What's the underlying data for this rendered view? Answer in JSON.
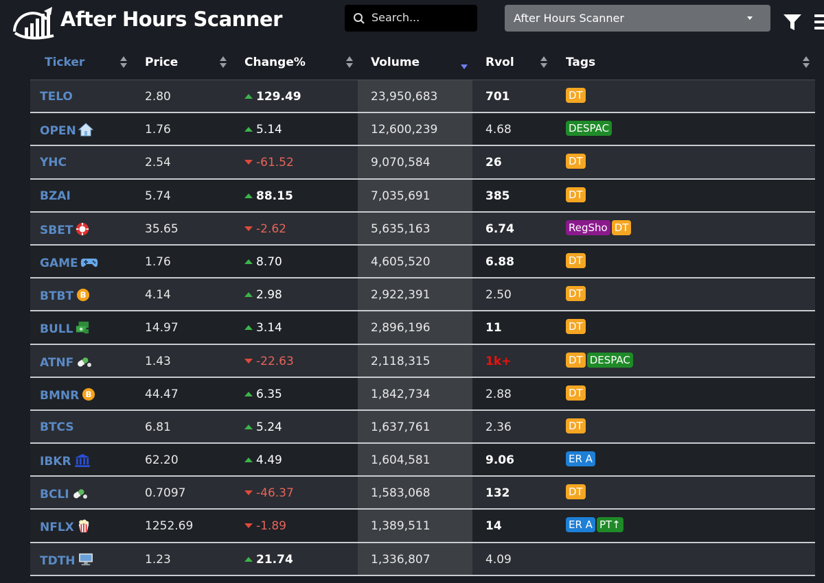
{
  "header": {
    "app_title": "After Hours Scanner",
    "search_placeholder": "Search...",
    "scanner_select_value": "After Hours Scanner"
  },
  "colors": {
    "background": "#1a1d23",
    "ticker_link": "#5a8ac6",
    "positive_arrow": "#3bb44a",
    "negative": "#e8645a",
    "tag_dt": "#f5a623",
    "tag_despac": "#1f8a28",
    "tag_regsho": "#8a1a8c",
    "tag_er": "#1e7fd6"
  },
  "table": {
    "columns": [
      "Ticker",
      "Price",
      "Change%",
      "Volume",
      "Rvol",
      "Tags"
    ],
    "sorted_by": "Volume",
    "sort_direction": "descending",
    "rows": [
      {
        "ticker": "TELO",
        "icon": "",
        "price": "2.80",
        "change": "129.49",
        "direction": "up",
        "change_bold": true,
        "volume": "23,950,683",
        "rvol": "701",
        "rvol_style": "bold",
        "tags": [
          "DT"
        ]
      },
      {
        "ticker": "OPEN",
        "icon": "house-icon",
        "price": "1.76",
        "change": "5.14",
        "direction": "up",
        "change_bold": false,
        "volume": "12,600,239",
        "rvol": "4.68",
        "rvol_style": "normal",
        "tags": [
          "DESPAC"
        ]
      },
      {
        "ticker": "YHC",
        "icon": "",
        "price": "2.54",
        "change": "-61.52",
        "direction": "down",
        "change_bold": false,
        "volume": "9,070,584",
        "rvol": "26",
        "rvol_style": "bold",
        "tags": [
          "DT"
        ]
      },
      {
        "ticker": "BZAI",
        "icon": "",
        "price": "5.74",
        "change": "88.15",
        "direction": "up",
        "change_bold": true,
        "volume": "7,035,691",
        "rvol": "385",
        "rvol_style": "bold",
        "tags": [
          "DT"
        ]
      },
      {
        "ticker": "SBET",
        "icon": "casino-chip-icon",
        "price": "35.65",
        "change": "-2.62",
        "direction": "down",
        "change_bold": false,
        "volume": "5,635,163",
        "rvol": "6.74",
        "rvol_style": "bold",
        "tags": [
          "RegSho",
          "DT"
        ]
      },
      {
        "ticker": "GAME",
        "icon": "gamepad-icon",
        "price": "1.76",
        "change": "8.70",
        "direction": "up",
        "change_bold": false,
        "volume": "4,605,520",
        "rvol": "6.88",
        "rvol_style": "bold",
        "tags": [
          "DT"
        ]
      },
      {
        "ticker": "BTBT",
        "icon": "bitcoin-icon",
        "price": "4.14",
        "change": "2.98",
        "direction": "up",
        "change_bold": false,
        "volume": "2,922,391",
        "rvol": "2.50",
        "rvol_style": "normal",
        "tags": [
          "DT"
        ]
      },
      {
        "ticker": "BULL",
        "icon": "money-icon",
        "price": "14.97",
        "change": "3.14",
        "direction": "up",
        "change_bold": false,
        "volume": "2,896,196",
        "rvol": "11",
        "rvol_style": "bold",
        "tags": [
          "DT"
        ]
      },
      {
        "ticker": "ATNF",
        "icon": "pill-icon",
        "price": "1.43",
        "change": "-22.63",
        "direction": "down",
        "change_bold": false,
        "volume": "2,118,315",
        "rvol": "1k+",
        "rvol_style": "hot",
        "tags": [
          "DT",
          "DESPAC"
        ]
      },
      {
        "ticker": "BMNR",
        "icon": "bitcoin-icon",
        "price": "44.47",
        "change": "6.35",
        "direction": "up",
        "change_bold": false,
        "volume": "1,842,734",
        "rvol": "2.88",
        "rvol_style": "normal",
        "tags": [
          "DT"
        ]
      },
      {
        "ticker": "BTCS",
        "icon": "",
        "price": "6.81",
        "change": "5.24",
        "direction": "up",
        "change_bold": false,
        "volume": "1,637,761",
        "rvol": "2.36",
        "rvol_style": "normal",
        "tags": [
          "DT"
        ]
      },
      {
        "ticker": "IBKR",
        "icon": "bank-icon",
        "price": "62.20",
        "change": "4.49",
        "direction": "up",
        "change_bold": false,
        "volume": "1,604,581",
        "rvol": "9.06",
        "rvol_style": "bold",
        "tags": [
          "ER A"
        ]
      },
      {
        "ticker": "BCLI",
        "icon": "pill-icon",
        "price": "0.7097",
        "change": "-46.37",
        "direction": "down",
        "change_bold": false,
        "volume": "1,583,068",
        "rvol": "132",
        "rvol_style": "bold",
        "tags": [
          "DT"
        ]
      },
      {
        "ticker": "NFLX",
        "icon": "popcorn-icon",
        "price": "1252.69",
        "change": "-1.89",
        "direction": "down",
        "change_bold": false,
        "volume": "1,389,511",
        "rvol": "14",
        "rvol_style": "bold",
        "tags": [
          "ER A",
          "PT↑"
        ]
      },
      {
        "ticker": "TDTH",
        "icon": "computer-icon",
        "price": "1.23",
        "change": "21.74",
        "direction": "up",
        "change_bold": true,
        "volume": "1,336,807",
        "rvol": "4.09",
        "rvol_style": "normal",
        "tags": []
      }
    ]
  }
}
